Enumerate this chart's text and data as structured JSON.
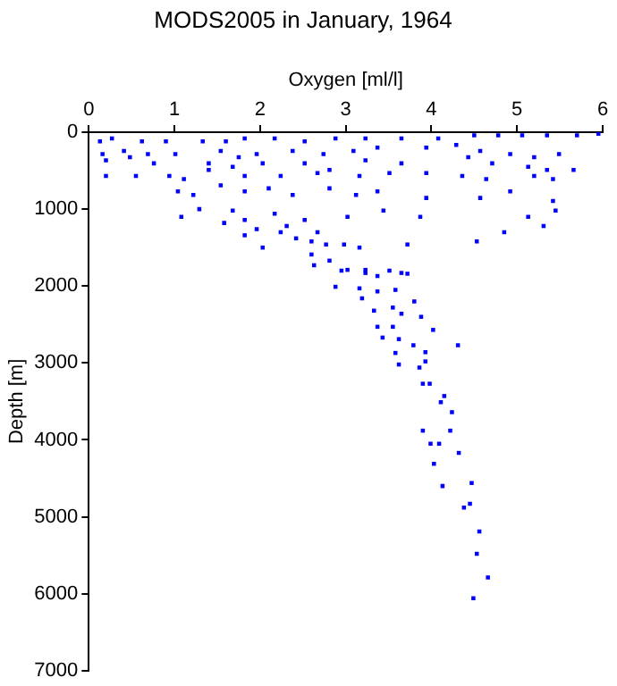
{
  "chart_data": {
    "type": "scatter",
    "title": "MODS2005 in January, 1964",
    "xlabel": "Oxygen [ml/l]",
    "ylabel": "Depth [m]",
    "xlim": [
      0,
      6
    ],
    "xticks": [
      0,
      1,
      2,
      3,
      4,
      5,
      6
    ],
    "ylim": [
      7000,
      0
    ],
    "yticks": [
      0,
      1000,
      2000,
      3000,
      4000,
      5000,
      6000,
      7000
    ],
    "grid": false,
    "legend": false,
    "marker": "square",
    "series": [
      {
        "color": "#0000ff",
        "x": [
          0.13,
          0.27,
          0.62,
          0.9,
          1.33,
          1.6,
          1.82,
          2.17,
          2.52,
          2.88,
          3.23,
          3.65,
          4.08,
          4.5,
          4.78,
          5.06,
          5.35,
          5.7,
          5.95,
          0.16,
          0.41,
          0.69,
          1.01,
          1.54,
          1.75,
          1.96,
          2.38,
          2.74,
          3.09,
          3.37,
          3.94,
          4.29,
          4.57,
          4.92,
          5.2,
          5.49,
          0.2,
          0.48,
          0.76,
          1.4,
          1.68,
          2.03,
          2.52,
          2.81,
          3.23,
          3.65,
          4.43,
          4.71,
          5.13,
          5.35,
          5.66,
          0.2,
          0.55,
          0.94,
          1.11,
          1.4,
          1.82,
          2.24,
          2.67,
          3.16,
          3.51,
          3.94,
          4.36,
          4.64,
          5.2,
          5.42,
          1.04,
          1.22,
          1.54,
          1.82,
          2.1,
          2.38,
          2.81,
          3.12,
          3.37,
          3.94,
          4.57,
          4.92,
          5.42,
          1.08,
          1.29,
          1.58,
          1.68,
          1.82,
          1.96,
          2.17,
          2.31,
          2.52,
          2.67,
          3.02,
          3.44,
          3.87,
          4.85,
          5.13,
          5.31,
          5.45,
          1.82,
          2.03,
          2.24,
          2.42,
          2.6,
          2.77,
          2.6,
          2.81,
          2.98,
          3.16,
          3.72,
          4.53,
          3.02,
          3.23,
          3.37,
          3.65,
          2.63,
          2.95,
          3.23,
          3.51,
          3.72,
          2.88,
          3.16,
          3.37,
          3.58,
          3.19,
          3.33,
          3.55,
          3.8,
          3.37,
          3.55,
          3.65,
          3.88,
          4.02,
          3.43,
          3.62,
          3.79,
          3.93,
          4.31,
          3.58,
          3.62,
          3.86,
          3.93,
          3.9,
          3.98,
          4.15,
          4.11,
          4.24,
          3.9,
          4.22,
          3.99,
          4.09,
          4.32,
          4.03,
          4.13,
          4.47,
          4.38,
          4.45,
          4.56,
          4.53,
          4.66,
          4.49
        ],
        "values": [
          120,
          80,
          120,
          120,
          120,
          120,
          80,
          80,
          120,
          80,
          80,
          80,
          80,
          40,
          40,
          40,
          40,
          40,
          20,
          285,
          245,
          285,
          285,
          245,
          325,
          285,
          245,
          285,
          245,
          200,
          200,
          165,
          245,
          285,
          325,
          285,
          365,
          325,
          405,
          405,
          450,
          405,
          405,
          490,
          365,
          405,
          325,
          405,
          450,
          490,
          490,
          570,
          570,
          570,
          610,
          490,
          570,
          570,
          530,
          570,
          530,
          530,
          570,
          610,
          570,
          610,
          770,
          815,
          690,
          770,
          730,
          815,
          730,
          815,
          770,
          855,
          855,
          770,
          895,
          1100,
          1000,
          1180,
          1020,
          1140,
          1260,
          1060,
          1220,
          1140,
          1300,
          1100,
          1020,
          1100,
          1300,
          1100,
          1220,
          1020,
          1340,
          1500,
          1300,
          1380,
          1420,
          1460,
          1590,
          1670,
          1460,
          1500,
          1460,
          1420,
          1790,
          1830,
          1870,
          1830,
          1730,
          1800,
          1790,
          1800,
          1840,
          2010,
          2030,
          2070,
          2050,
          2160,
          2320,
          2280,
          2200,
          2530,
          2530,
          2360,
          2400,
          2570,
          2670,
          2690,
          2770,
          2860,
          2770,
          2870,
          3020,
          3060,
          2980,
          3270,
          3270,
          3430,
          3510,
          3640,
          3880,
          3880,
          4050,
          4050,
          4170,
          4310,
          4600,
          4560,
          4880,
          4830,
          5190,
          5480,
          5790,
          6060
        ]
      }
    ]
  }
}
